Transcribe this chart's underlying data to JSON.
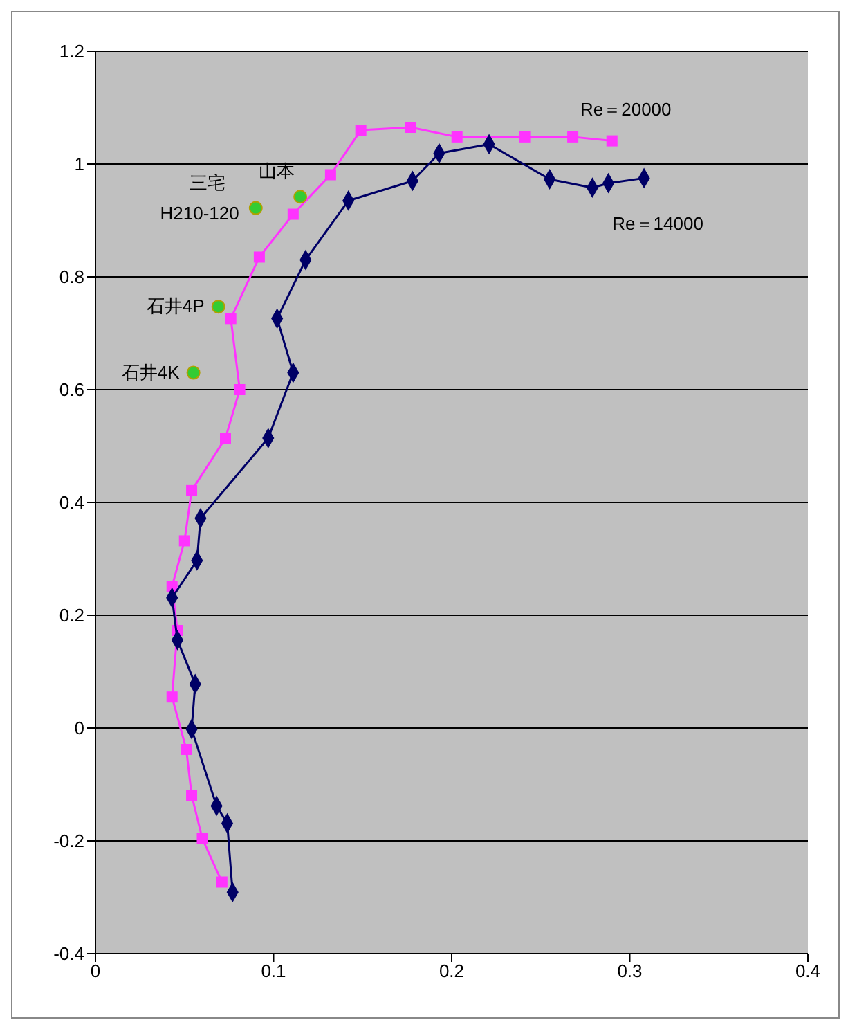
{
  "chart_data": {
    "type": "line",
    "xlim": [
      0,
      0.4
    ],
    "xticks": [
      0,
      0.1,
      0.2,
      0.3,
      0.4
    ],
    "ylim": [
      -0.4,
      1.2
    ],
    "yticks": [
      -0.4,
      -0.2,
      0,
      0.2,
      0.4,
      0.6,
      0.8,
      1,
      1.2
    ],
    "grid": "y",
    "legend": false,
    "line_style": "solid",
    "series": [
      {
        "name": "Re＝20000",
        "marker": "square",
        "color": "#ff33ff",
        "x": [
          0.071,
          0.06,
          0.054,
          0.051,
          0.043,
          0.046,
          0.043,
          0.05,
          0.054,
          0.073,
          0.081,
          0.076,
          0.092,
          0.111,
          0.132,
          0.149,
          0.177,
          0.203,
          0.241,
          0.268,
          0.29
        ],
        "values": [
          -0.273,
          -0.196,
          -0.119,
          -0.038,
          0.055,
          0.173,
          0.251,
          0.332,
          0.421,
          0.514,
          0.6,
          0.726,
          0.835,
          0.911,
          0.981,
          1.06,
          1.065,
          1.048,
          1.048,
          1.048,
          1.041
        ]
      },
      {
        "name": "Re＝14000",
        "marker": "diamond",
        "color": "#000066",
        "x": [
          0.077,
          0.074,
          0.068,
          0.054,
          0.056,
          0.046,
          0.043,
          0.057,
          0.059,
          0.097,
          0.111,
          0.102,
          0.118,
          0.142,
          0.178,
          0.193,
          0.221,
          0.255,
          0.279,
          0.288,
          0.308
        ],
        "values": [
          -0.291,
          -0.169,
          -0.138,
          -0.002,
          0.078,
          0.156,
          0.231,
          0.297,
          0.372,
          0.514,
          0.63,
          0.726,
          0.83,
          0.935,
          0.97,
          1.019,
          1.035,
          0.973,
          0.958,
          0.966,
          0.975
        ]
      },
      {
        "type": "scatter",
        "marker": "circle",
        "color": "#33cc33",
        "x": [
          0.09,
          0.115,
          0.069,
          0.055
        ],
        "values": [
          0.922,
          0.942,
          0.747,
          0.63
        ]
      }
    ],
    "annotations": [
      {
        "text": "三宅",
        "x": 0.09,
        "y": 0.922
      },
      {
        "text": "H210-120",
        "x": 0.09,
        "y": 0.922
      },
      {
        "text": "山本",
        "x": 0.115,
        "y": 0.942
      },
      {
        "text": "石井4P",
        "x": 0.069,
        "y": 0.747
      },
      {
        "text": "石井4K",
        "x": 0.055,
        "y": 0.63
      }
    ]
  }
}
